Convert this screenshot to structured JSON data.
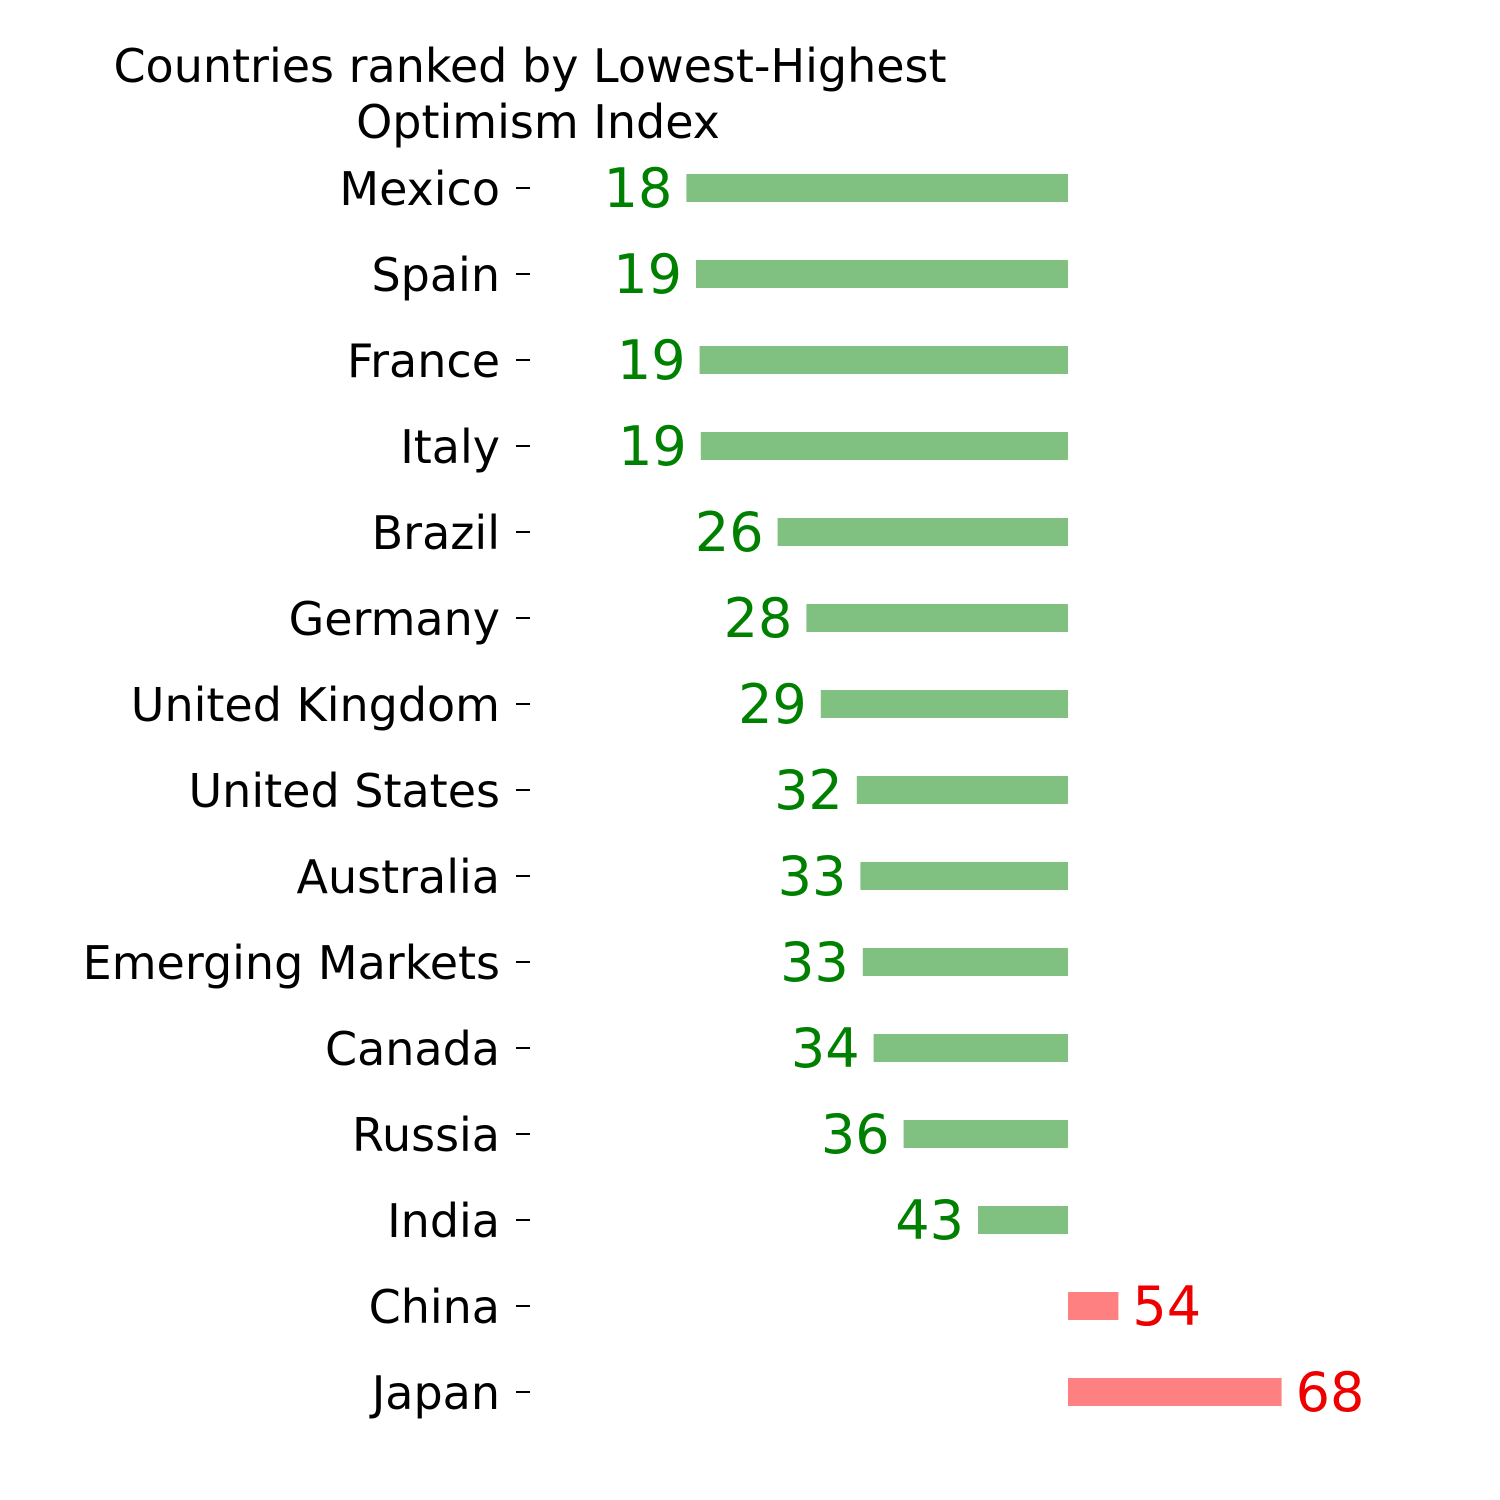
{
  "chart_data": {
    "type": "bar",
    "orientation": "horizontal-diverging",
    "title": "Countries ranked by Lowest-Highest",
    "subtitle": "Optimism Index",
    "baseline": 50,
    "categories": [
      "Mexico",
      "Spain",
      "France",
      "Italy",
      "Brazil",
      "Germany",
      "United Kingdom",
      "United States",
      "Australia",
      "Emerging Markets",
      "Canada",
      "Russia",
      "India",
      "China",
      "Japan"
    ],
    "values": [
      18.2,
      19.0,
      19.3,
      19.4,
      25.8,
      28.2,
      29.4,
      32.4,
      32.7,
      32.9,
      33.8,
      36.3,
      42.5,
      54.2,
      67.8
    ],
    "labels": [
      "18",
      "19",
      "19",
      "19",
      "26",
      "28",
      "29",
      "32",
      "33",
      "33",
      "34",
      "36",
      "43",
      "54",
      "68"
    ],
    "xlim": [
      0,
      85
    ],
    "grid": false,
    "colors": {
      "below_bar": "#80c080",
      "below_text": "#008000",
      "above_bar": "#ff8080",
      "above_text": "#ee0000",
      "axis_text": "#000000"
    }
  }
}
